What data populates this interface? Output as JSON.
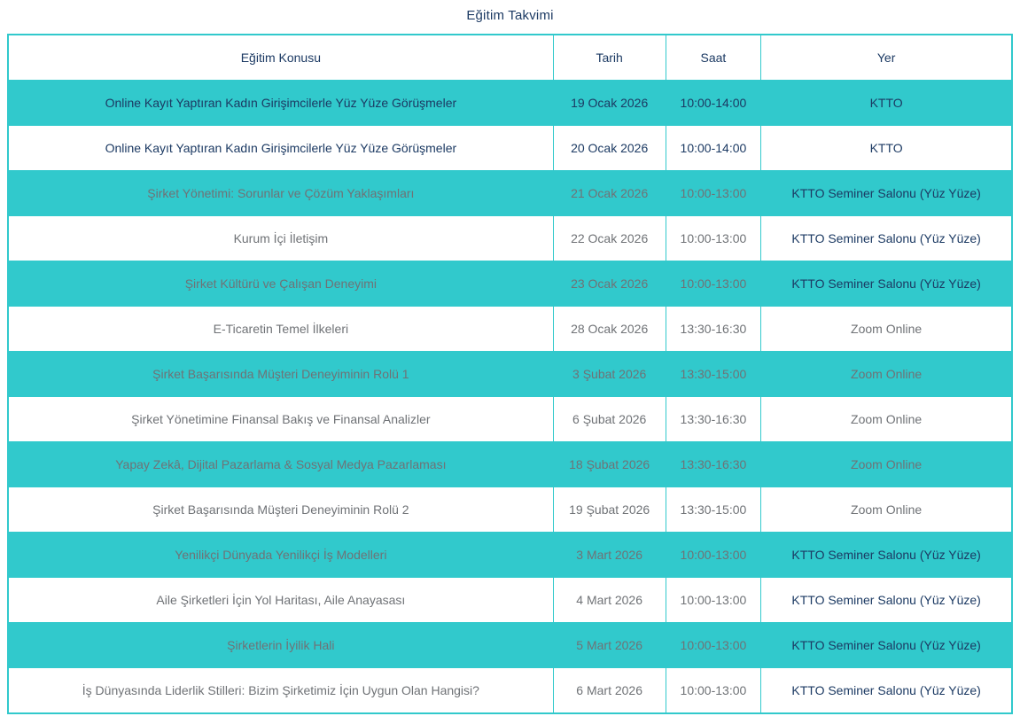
{
  "title": "Eğitim Takvimi",
  "colors": {
    "accent_teal": "#31c9cc",
    "navy_text": "#1c3a63",
    "gray_text": "#6f7276",
    "white": "#ffffff"
  },
  "table": {
    "headers": {
      "topic": "Eğitim Konusu",
      "date": "Tarih",
      "time": "Saat",
      "place": "Yer"
    },
    "column_widths_pct": [
      54.3,
      11.2,
      9.5,
      25.0
    ],
    "rows": [
      {
        "topic": "Online Kayıt Yaptıran Kadın Girişimcilerle Yüz Yüze Görüşmeler",
        "date": "19 Ocak 2026",
        "time": "10:00-14:00",
        "place": "KTTO",
        "teal_bg": true,
        "topic_color": "navy",
        "place_color": "navy"
      },
      {
        "topic": "Online Kayıt Yaptıran Kadın Girişimcilerle Yüz Yüze Görüşmeler",
        "date": "20 Ocak 2026",
        "time": "10:00-14:00",
        "place": "KTTO",
        "teal_bg": false,
        "topic_color": "navy",
        "place_color": "navy"
      },
      {
        "topic": "Şirket Yönetimi: Sorunlar ve Çözüm Yaklaşımları",
        "date": "21 Ocak 2026",
        "time": "10:00-13:00",
        "place": "KTTO Seminer Salonu (Yüz Yüze)",
        "teal_bg": true,
        "topic_color": "gray",
        "place_color": "navy"
      },
      {
        "topic": "Kurum İçi İletişim",
        "date": "22 Ocak 2026",
        "time": "10:00-13:00",
        "place": "KTTO Seminer Salonu (Yüz Yüze)",
        "teal_bg": false,
        "topic_color": "gray",
        "place_color": "navy"
      },
      {
        "topic": "Şirket Kültürü ve Çalışan Deneyimi",
        "date": "23 Ocak 2026",
        "time": "10:00-13:00",
        "place": "KTTO Seminer Salonu (Yüz Yüze)",
        "teal_bg": true,
        "topic_color": "gray",
        "place_color": "navy"
      },
      {
        "topic": "E-Ticaretin Temel İlkeleri",
        "date": "28 Ocak 2026",
        "time": "13:30-16:30",
        "place": "Zoom Online",
        "teal_bg": false,
        "topic_color": "gray",
        "place_color": "gray"
      },
      {
        "topic": "Şirket Başarısında Müşteri Deneyiminin Rolü 1",
        "date": "3 Şubat 2026",
        "time": "13:30-15:00",
        "place": "Zoom Online",
        "teal_bg": true,
        "topic_color": "gray",
        "place_color": "gray"
      },
      {
        "topic": "Şirket Yönetimine Finansal Bakış ve Finansal Analizler",
        "date": "6 Şubat 2026",
        "time": "13:30-16:30",
        "place": "Zoom Online",
        "teal_bg": false,
        "topic_color": "gray",
        "place_color": "gray"
      },
      {
        "topic": "Yapay Zekâ, Dijital Pazarlama & Sosyal Medya Pazarlaması",
        "date": "18 Şubat 2026",
        "time": "13:30-16:30",
        "place": "Zoom Online",
        "teal_bg": true,
        "topic_color": "gray",
        "place_color": "gray"
      },
      {
        "topic": "Şirket Başarısında Müşteri Deneyiminin Rolü 2",
        "date": "19 Şubat 2026",
        "time": "13:30-15:00",
        "place": "Zoom Online",
        "teal_bg": false,
        "topic_color": "gray",
        "place_color": "gray"
      },
      {
        "topic": "Yenilikçi Dünyada Yenilikçi İş Modelleri",
        "date": "3 Mart 2026",
        "time": "10:00-13:00",
        "place": "KTTO Seminer Salonu (Yüz Yüze)",
        "teal_bg": true,
        "topic_color": "gray",
        "place_color": "navy"
      },
      {
        "topic": "Aile Şirketleri İçin Yol Haritası, Aile Anayasası",
        "date": "4 Mart 2026",
        "time": "10:00-13:00",
        "place": "KTTO Seminer Salonu (Yüz Yüze)",
        "teal_bg": false,
        "topic_color": "gray",
        "place_color": "navy"
      },
      {
        "topic": "Şirketlerin İyilik Hali",
        "date": "5 Mart 2026",
        "time": "10:00-13:00",
        "place": "KTTO Seminer Salonu (Yüz Yüze)",
        "teal_bg": true,
        "topic_color": "gray",
        "place_color": "navy"
      },
      {
        "topic": "İş Dünyasında Liderlik Stilleri: Bizim Şirketimiz İçin Uygun Olan Hangisi?",
        "date": "6 Mart 2026",
        "time": "10:00-13:00",
        "place": "KTTO Seminer Salonu (Yüz Yüze)",
        "teal_bg": false,
        "topic_color": "gray",
        "place_color": "navy"
      }
    ]
  }
}
